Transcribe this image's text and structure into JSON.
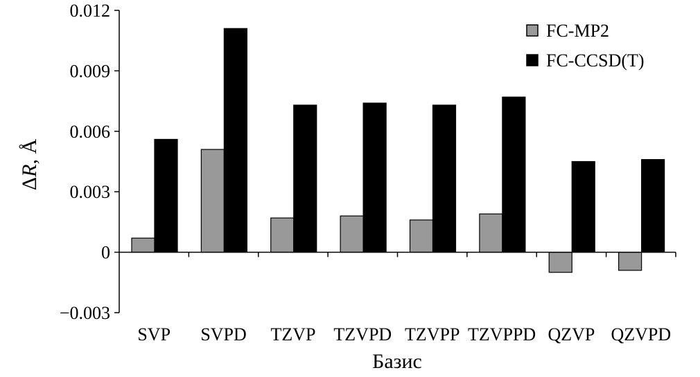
{
  "chart_data": {
    "type": "bar",
    "categories": [
      "SVP",
      "SVPD",
      "TZVP",
      "TZVPD",
      "TZVPP",
      "TZVPPD",
      "QZVP",
      "QZVPD"
    ],
    "series": [
      {
        "name": "FC-MP2",
        "color": "#999999",
        "values": [
          0.0007,
          0.0051,
          0.0017,
          0.0018,
          0.0016,
          0.0019,
          -0.001,
          -0.0009
        ]
      },
      {
        "name": "FC-CCSD(T)",
        "color": "#000000",
        "values": [
          0.0056,
          0.0111,
          0.0073,
          0.0074,
          0.0073,
          0.0077,
          0.0045,
          0.0046
        ]
      }
    ],
    "yticks": [
      "−0.003",
      "0",
      "0.003",
      "0.006",
      "0.009",
      "0.012"
    ],
    "ytick_values": [
      -0.003,
      0,
      0.003,
      0.006,
      0.009,
      0.012
    ],
    "ylim": [
      -0.003,
      0.012
    ],
    "xlabel": "Базис",
    "ylabel_prefix": "Δ",
    "ylabel_var": "R",
    "ylabel_suffix": ", Å",
    "legend_position": "top-right",
    "grid": false
  }
}
